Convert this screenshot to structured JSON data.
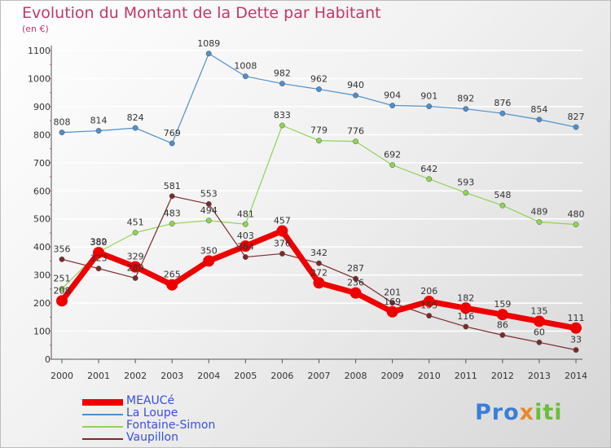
{
  "title": "Evolution du Montant de la Dette par Habitant",
  "unit": "(en €)",
  "logo": {
    "text_a": "Pro",
    "text_b": "x",
    "text_c": "iti"
  },
  "colors": {
    "meauce": "#ee0000",
    "la_loupe": "#4f8fc9",
    "fontaine_simon": "#8fd454",
    "vaupillon": "#7a2a2a",
    "axis_text": "#333333",
    "grid": "#ffffff"
  },
  "chart_data": {
    "type": "line",
    "title": "Evolution du Montant de la Dette par Habitant",
    "ylabel": "(en €)",
    "xlabel": "",
    "x": [
      "2000",
      "2001",
      "2002",
      "2003",
      "2004",
      "2005",
      "2006",
      "2007",
      "2008",
      "2009",
      "2010",
      "2011",
      "2012",
      "2013",
      "2014"
    ],
    "ylim": [
      0,
      1100
    ],
    "yticks": [
      0,
      100,
      200,
      300,
      400,
      500,
      600,
      700,
      800,
      900,
      1000,
      1100
    ],
    "grid": true,
    "legend_position": "bottom-left",
    "series": [
      {
        "name": "MEAUCé",
        "key": "meauce",
        "values": [
          208,
          380,
          329,
          265,
          350,
          403,
          457,
          272,
          236,
          169,
          206,
          182,
          159,
          135,
          111
        ]
      },
      {
        "name": "La Loupe",
        "key": "la_loupe",
        "values": [
          808,
          814,
          824,
          769,
          1089,
          1008,
          982,
          962,
          940,
          904,
          901,
          892,
          876,
          854,
          827
        ]
      },
      {
        "name": "Fontaine-Simon",
        "key": "fontaine_simon",
        "values": [
          251,
          382,
          451,
          483,
          494,
          481,
          833,
          779,
          776,
          692,
          642,
          593,
          548,
          489,
          480
        ]
      },
      {
        "name": "Vaupillon",
        "key": "vaupillon",
        "values": [
          356,
          323,
          289,
          581,
          553,
          364,
          376,
          342,
          287,
          201,
          155,
          116,
          86,
          60,
          33
        ]
      }
    ]
  }
}
